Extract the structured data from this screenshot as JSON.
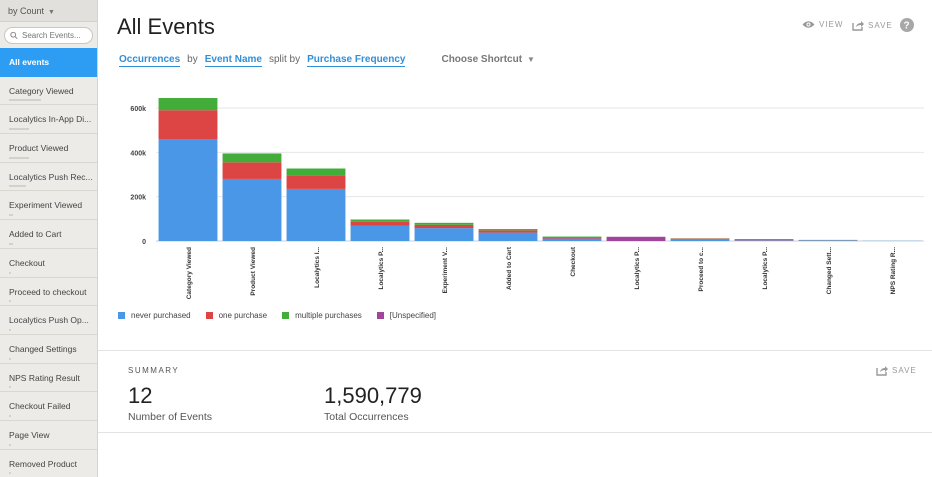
{
  "sidebar": {
    "sort_label": "by Count",
    "search_placeholder": "Search Events...",
    "items": [
      {
        "label": "All events",
        "active": true,
        "bar": 0
      },
      {
        "label": "Category Viewed",
        "bar": 0.4
      },
      {
        "label": "Localytics In-App Di...",
        "bar": 0.25
      },
      {
        "label": "Product Viewed",
        "bar": 0.25
      },
      {
        "label": "Localytics Push Rec...",
        "bar": 0.21
      },
      {
        "label": "Experiment Viewed",
        "bar": 0.05
      },
      {
        "label": "Added to Cart",
        "bar": 0.05
      },
      {
        "label": "Checkout",
        "bar": 0.03
      },
      {
        "label": "Proceed to checkout",
        "bar": 0.02
      },
      {
        "label": "Localytics Push Op...",
        "bar": 0.02
      },
      {
        "label": "Changed Settings",
        "bar": 0.01
      },
      {
        "label": "NPS Rating Result",
        "bar": 0.01
      },
      {
        "label": "Checkout Failed",
        "bar": 0.01
      },
      {
        "label": "Page View",
        "bar": 0.01
      },
      {
        "label": "Removed Product",
        "bar": 0.005
      }
    ]
  },
  "header": {
    "title": "All Events",
    "view_label": "VIEW",
    "save_label": "SAVE",
    "help_icon": "?"
  },
  "controls": {
    "measure": "Occurrences",
    "by_word": "by",
    "dimension": "Event Name",
    "split_word": "split by",
    "split": "Purchase Frequency",
    "shortcut": "Choose Shortcut"
  },
  "colors": {
    "never": "#4a97e8",
    "one": "#dd4444",
    "multiple": "#43ad3a",
    "unspecified": "#a2449c",
    "accent": "#2d9df4"
  },
  "chart_data": {
    "type": "bar",
    "stacked": true,
    "categories": [
      "Category Viewed",
      "Product Viewed",
      "Localytics I...",
      "Localytics P...",
      "Experiment V...",
      "Added to Cart",
      "Checkout",
      "Localytics P...",
      "Proceed to c...",
      "Localytics P...",
      "Changed Sett...",
      "NPS Rating R..."
    ],
    "series": [
      {
        "name": "never purchased",
        "color": "#4a97e8",
        "values": [
          460000,
          280000,
          235000,
          70000,
          58000,
          38000,
          11000,
          0,
          9000,
          3000,
          3000,
          1000
        ]
      },
      {
        "name": "one purchase",
        "color": "#dd4444",
        "values": [
          130000,
          75000,
          60000,
          17000,
          15000,
          10000,
          5000,
          0,
          2000,
          5000,
          1000,
          0
        ]
      },
      {
        "name": "multiple purchases",
        "color": "#43ad3a",
        "values": [
          55000,
          40000,
          32000,
          10000,
          9000,
          6000,
          4000,
          0,
          1000,
          1000,
          1000,
          0
        ]
      },
      {
        "name": "[Unspecified]",
        "color": "#a2449c",
        "values": [
          0,
          0,
          0,
          0,
          0,
          0,
          0,
          19000,
          0,
          0,
          0,
          0
        ]
      }
    ],
    "yticks": [
      "0",
      "200k",
      "400k",
      "600k"
    ],
    "ylim": [
      0,
      600000
    ],
    "grid": true,
    "legend": "bottom-left"
  },
  "summary": {
    "label": "SUMMARY",
    "save_label": "SAVE",
    "events_value": "12",
    "events_label": "Number of Events",
    "occ_value": "1,590,779",
    "occ_label": "Total Occurrences"
  }
}
